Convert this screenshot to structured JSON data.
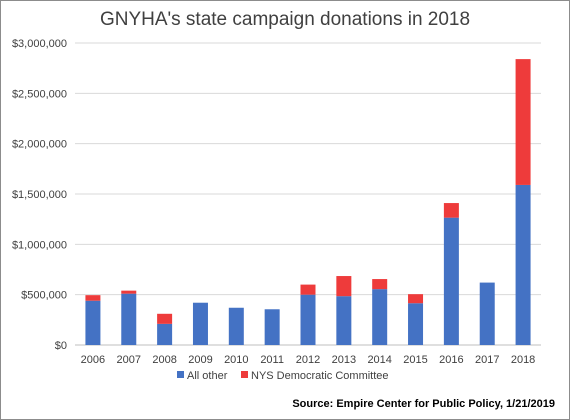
{
  "chart_data": {
    "type": "bar",
    "stacked": true,
    "title": "GNYHA's state campaign donations in 2018",
    "xlabel": "",
    "ylabel": "",
    "categories": [
      "2006",
      "2007",
      "2008",
      "2009",
      "2010",
      "2011",
      "2012",
      "2013",
      "2014",
      "2015",
      "2016",
      "2017",
      "2018"
    ],
    "series": [
      {
        "name": "All other",
        "color": "#4472C4",
        "values": [
          440000,
          510000,
          210000,
          420000,
          370000,
          355000,
          500000,
          485000,
          555000,
          415000,
          1265000,
          620000,
          1590000
        ]
      },
      {
        "name": "NYS Democratic Committee",
        "color": "#EE3B3B",
        "values": [
          55000,
          30000,
          100000,
          0,
          0,
          0,
          100000,
          200000,
          100000,
          90000,
          145000,
          0,
          1250000
        ]
      }
    ],
    "ylim": [
      0,
      3000000
    ],
    "yticks": [
      0,
      500000,
      1000000,
      1500000,
      2000000,
      2500000,
      3000000
    ],
    "ytick_labels": [
      "$0",
      "$500,000",
      "$1,000,000",
      "$1,500,000",
      "$2,000,000",
      "$2,500,000",
      "$3,000,000"
    ],
    "grid": true,
    "legend_position": "bottom"
  },
  "source": "Source: Empire Center for Public Policy, 1/21/2019",
  "colors": {
    "gridline": "#d9d9d9",
    "axis": "#bfbfbf"
  }
}
